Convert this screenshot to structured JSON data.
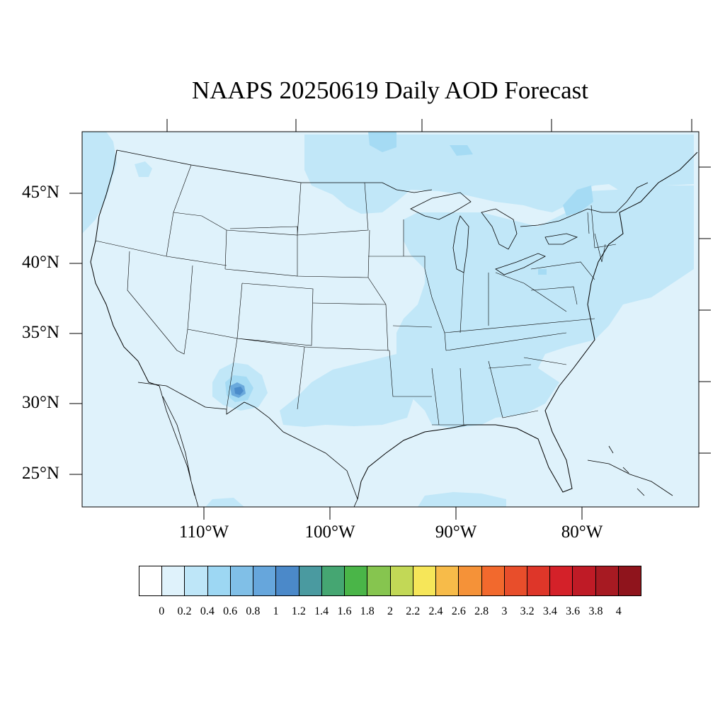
{
  "title": "NAAPS 20250619 Daily AOD Forecast",
  "map": {
    "background_color": "#dff2fb",
    "lat_labels": [
      "45°N",
      "40°N",
      "35°N",
      "30°N",
      "25°N"
    ],
    "lon_labels": [
      "110°W",
      "100°W",
      "90°W",
      "80°W"
    ],
    "plume_colors": {
      "0.2-0.4": "#c1e7f8",
      "0.4-0.6": "#a5dbf4",
      "0.6-0.8": "#87c3e8",
      "0.8-1": "#6aa9dc",
      "1-1.2": "#4b8ccb"
    }
  },
  "colorbar": {
    "colors": [
      "#ffffff",
      "#dff2fb",
      "#bee6f8",
      "#9dd7f3",
      "#80bfe7",
      "#66a6dc",
      "#4b89c9",
      "#4a9aa0",
      "#45a672",
      "#4ab548",
      "#86c54f",
      "#c2d856",
      "#f6e659",
      "#f7bb49",
      "#f59238",
      "#f2692d",
      "#e84e2b",
      "#de3629",
      "#d42129",
      "#bf1b26",
      "#a71a22",
      "#8f141c"
    ],
    "labels": [
      "0",
      "0.2",
      "0.4",
      "0.6",
      "0.8",
      "1",
      "1.2",
      "1.4",
      "1.6",
      "1.8",
      "2",
      "2.2",
      "2.4",
      "2.6",
      "2.8",
      "3",
      "3.2",
      "3.4",
      "3.6",
      "3.8",
      "4"
    ]
  }
}
